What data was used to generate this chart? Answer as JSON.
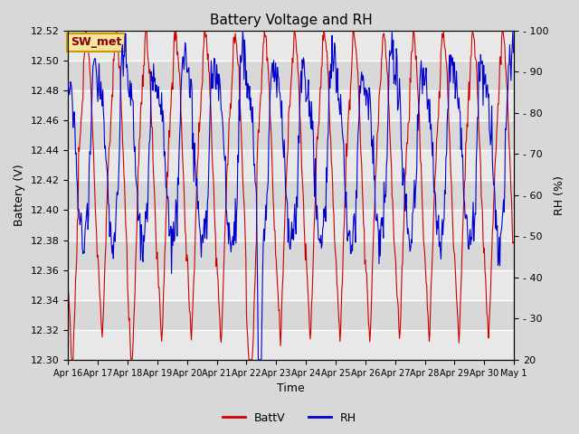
{
  "title": "Battery Voltage and RH",
  "xlabel": "Time",
  "ylabel_left": "Battery (V)",
  "ylabel_right": "RH (%)",
  "annotation": "SW_met",
  "legend_labels": [
    "BattV",
    "RH"
  ],
  "legend_colors": [
    "#cc0000",
    "#0000cc"
  ],
  "batt_ylim": [
    12.3,
    12.52
  ],
  "rh_ylim": [
    20,
    100
  ],
  "batt_yticks": [
    12.3,
    12.32,
    12.34,
    12.36,
    12.38,
    12.4,
    12.42,
    12.44,
    12.46,
    12.48,
    12.5,
    12.52
  ],
  "rh_yticks": [
    20,
    30,
    40,
    50,
    60,
    70,
    80,
    90,
    100
  ],
  "xtick_labels": [
    "Apr 16",
    "Apr 17",
    "Apr 18",
    "Apr 19",
    "Apr 20",
    "Apr 21",
    "Apr 22",
    "Apr 23",
    "Apr 24",
    "Apr 25",
    "Apr 26",
    "Apr 27",
    "Apr 28",
    "Apr 29",
    "Apr 30",
    "May 1"
  ],
  "bg_color": "#d8d8d8",
  "plot_bg_color": "#f0f0f0",
  "grid_color": "#ffffff",
  "line_color_batt": "#cc0000",
  "line_color_rh": "#0000cc",
  "annotation_bg": "#f5e6a0",
  "annotation_border": "#cc9900",
  "annotation_text_color": "#8b0000"
}
